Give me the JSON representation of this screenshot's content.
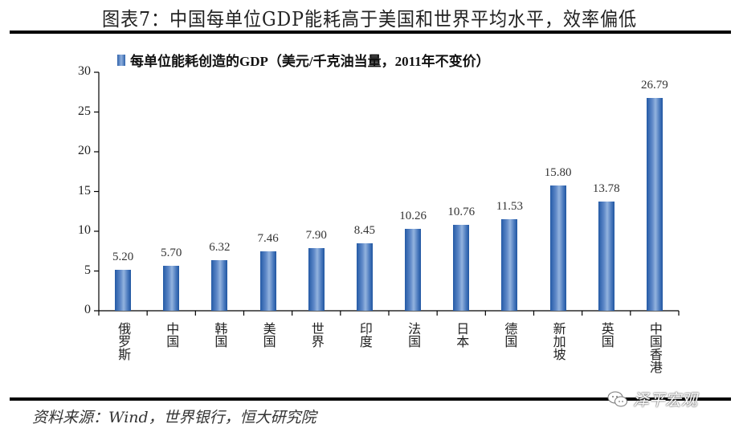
{
  "header": {
    "title": "图表7：中国每单位GDP能耗高于美国和世界平均水平，效率偏低"
  },
  "footer": {
    "source": "资料来源：Wind，世界银行，恒大研究院",
    "watermark": "泽平宏观"
  },
  "colors": {
    "bar_dark": "#245aa6",
    "bar_light": "#93b3de",
    "rule": "#000000"
  },
  "chart_data": {
    "type": "bar",
    "title": "图表7：中国每单位GDP能耗高于美国和世界平均水平，效率偏低",
    "legend": [
      "每单位能耗创造的GDP（美元/千克油当量，2011年不变价）"
    ],
    "legend_position": "top",
    "xlabel": "",
    "ylabel": "",
    "ylim": [
      0,
      30
    ],
    "yticks": [
      0,
      5,
      10,
      15,
      20,
      25,
      30
    ],
    "grid": false,
    "categories": [
      "俄罗斯",
      "中国",
      "韩国",
      "美国",
      "世界",
      "印度",
      "法国",
      "日本",
      "德国",
      "新加坡",
      "英国",
      "中国香港"
    ],
    "series": [
      {
        "name": "每单位能耗创造的GDP（美元/千克油当量，2011年不变价）",
        "values": [
          5.2,
          5.7,
          6.32,
          7.46,
          7.9,
          8.45,
          10.26,
          10.76,
          11.53,
          15.8,
          13.78,
          26.79
        ],
        "labels": [
          "5.20",
          "5.70",
          "6.32",
          "7.46",
          "7.90",
          "8.45",
          "10.26",
          "10.76",
          "11.53",
          "15.80",
          "13.78",
          "26.79"
        ]
      }
    ]
  }
}
